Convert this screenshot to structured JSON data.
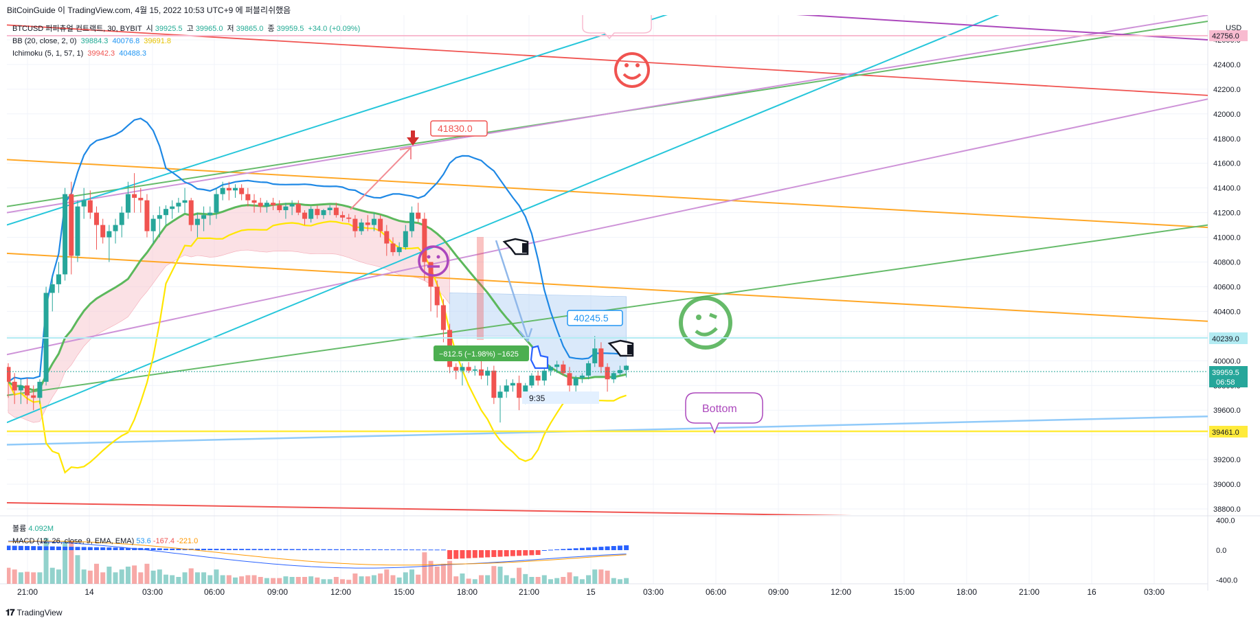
{
  "header": {
    "text": "BitCoinGuide 이 TradingView.com, 4월 15, 2022 10:53 UTC+9 에 퍼블리쉬했음"
  },
  "legend": {
    "symbol": "BTCUSD 퍼피츄얼 컨트랙트, 30, BYBIT",
    "open_label": "시",
    "open": "39925.5",
    "high_label": "고",
    "high": "39965.0",
    "low_label": "저",
    "low": "39865.0",
    "close_label": "종",
    "close": "39959.5",
    "change": "+34.0 (+0.09%)",
    "bb_label": "BB (20, close, 2, 0)",
    "bb_mid": "39884.3",
    "bb_upper": "40076.8",
    "bb_lower": "39691.8",
    "ichimoku_label": "Ichimoku (5, 1, 57, 1)",
    "ich_a": "39942.3",
    "ich_b": "40488.3"
  },
  "volume_legend": {
    "volume_label": "볼륨",
    "volume_value": "4.092M",
    "macd_label": "MACD (12, 26, close, 9, EMA, EMA)",
    "macd_hist": "53.6",
    "macd_line": "-167.4",
    "macd_signal": "-221.0"
  },
  "price_axis": {
    "currency": "USD",
    "ticks": [
      "42600.0",
      "42400.0",
      "42200.0",
      "42000.0",
      "41800.0",
      "41600.0",
      "41400.0",
      "41200.0",
      "41000.0",
      "40800.0",
      "40600.0",
      "40400.0",
      "40200.0",
      "40000.0",
      "39800.0",
      "39600.0",
      "39400.0",
      "39200.0",
      "39000.0",
      "38800.0"
    ],
    "tag_top": "42756.0",
    "tag_40239": "40239.0",
    "tag_current": "39959.5",
    "tag_countdown": "06:58",
    "tag_39461": "39461.0"
  },
  "macd_axis": {
    "ticks": [
      "400.0",
      "0.0",
      "-400.0"
    ]
  },
  "time_axis": {
    "ticks": [
      "21:00",
      "14",
      "03:00",
      "06:00",
      "09:00",
      "12:00",
      "15:00",
      "18:00",
      "21:00",
      "15",
      "03:00",
      "06:00",
      "09:00",
      "12:00",
      "15:00",
      "18:00",
      "21:00",
      "16",
      "03:00"
    ]
  },
  "annotations": {
    "target_price": "41830.0",
    "mid_price": "40245.5",
    "measure": "−812.5 (−1.98%) −1625",
    "duration": "9:35",
    "bottom": "Bottom"
  },
  "footer": {
    "brand": "TradingView"
  },
  "chart_data": {
    "type": "candlestick",
    "symbol": "BTCUSD",
    "interval": "30",
    "ylim": [
      38750,
      42800
    ],
    "macd_ylim": [
      -450,
      450
    ],
    "time_labels": [
      "21:00",
      "14",
      "03:00",
      "06:00",
      "09:00",
      "12:00",
      "15:00",
      "18:00",
      "21:00",
      "15",
      "03:00",
      "06:00",
      "09:00",
      "12:00",
      "15:00",
      "18:00",
      "21:00",
      "16",
      "03:00"
    ],
    "candles": [
      [
        39950,
        39980,
        39700,
        39830
      ],
      [
        39830,
        39900,
        39650,
        39760
      ],
      [
        39760,
        39850,
        39650,
        39800
      ],
      [
        39800,
        39860,
        39650,
        39720
      ],
      [
        39720,
        39800,
        39600,
        39700
      ],
      [
        39700,
        39850,
        39650,
        39830
      ],
      [
        39830,
        40600,
        39800,
        40550
      ],
      [
        40550,
        40680,
        40400,
        40620
      ],
      [
        40620,
        40800,
        40550,
        40700
      ],
      [
        40700,
        41400,
        40650,
        41350
      ],
      [
        41350,
        41450,
        40700,
        40850
      ],
      [
        40850,
        41300,
        40800,
        41250
      ],
      [
        41250,
        41400,
        41150,
        41300
      ],
      [
        41300,
        41380,
        41150,
        41200
      ],
      [
        41200,
        41250,
        40900,
        41100
      ],
      [
        41100,
        41150,
        40950,
        41000
      ],
      [
        41000,
        41100,
        40800,
        41050
      ],
      [
        41050,
        41150,
        40950,
        41100
      ],
      [
        41100,
        41250,
        41000,
        41200
      ],
      [
        41200,
        41450,
        41150,
        41350
      ],
      [
        41350,
        41520,
        41200,
        41320
      ],
      [
        41320,
        41400,
        41200,
        41300
      ],
      [
        41300,
        41350,
        41000,
        41050
      ],
      [
        41050,
        41180,
        40950,
        41150
      ],
      [
        41150,
        41250,
        41000,
        41180
      ],
      [
        41180,
        41260,
        41100,
        41230
      ],
      [
        41230,
        41300,
        41150,
        41250
      ],
      [
        41250,
        41320,
        41200,
        41280
      ],
      [
        41280,
        41400,
        41200,
        41300
      ],
      [
        41300,
        41320,
        41050,
        41100
      ],
      [
        41100,
        41200,
        41000,
        41150
      ],
      [
        41150,
        41250,
        41050,
        41180
      ],
      [
        41180,
        41250,
        41100,
        41200
      ],
      [
        41200,
        41400,
        41150,
        41350
      ],
      [
        41350,
        41450,
        41300,
        41400
      ],
      [
        41400,
        41450,
        41300,
        41380
      ],
      [
        41380,
        41430,
        41320,
        41400
      ],
      [
        41400,
        41430,
        41300,
        41350
      ],
      [
        41350,
        41400,
        41250,
        41300
      ],
      [
        41300,
        41350,
        41200,
        41280
      ],
      [
        41280,
        41320,
        41200,
        41250
      ],
      [
        41250,
        41300,
        41200,
        41280
      ],
      [
        41280,
        41320,
        41220,
        41260
      ],
      [
        41260,
        41300,
        41200,
        41220
      ],
      [
        41220,
        41280,
        41150,
        41250
      ],
      [
        41250,
        41300,
        41180,
        41270
      ],
      [
        41270,
        41300,
        41180,
        41200
      ],
      [
        41200,
        41220,
        41100,
        41150
      ],
      [
        41150,
        41250,
        41120,
        41230
      ],
      [
        41230,
        41260,
        41150,
        41180
      ],
      [
        41180,
        41230,
        41150,
        41220
      ],
      [
        41220,
        41260,
        41180,
        41240
      ],
      [
        41240,
        41280,
        41160,
        41180
      ],
      [
        41180,
        41210,
        41130,
        41160
      ],
      [
        41160,
        41190,
        41120,
        41150
      ],
      [
        41150,
        41180,
        41000,
        41050
      ],
      [
        41050,
        41150,
        41020,
        41120
      ],
      [
        41120,
        41180,
        41050,
        41100
      ],
      [
        41100,
        41200,
        41050,
        41150
      ],
      [
        41150,
        41180,
        41000,
        41050
      ],
      [
        41050,
        41100,
        40850,
        40950
      ],
      [
        40950,
        41000,
        40850,
        40880
      ],
      [
        40880,
        40960,
        40850,
        40920
      ],
      [
        40920,
        41100,
        40900,
        41050
      ],
      [
        41050,
        41250,
        41000,
        41200
      ],
      [
        41200,
        41280,
        41120,
        41150
      ],
      [
        41150,
        41200,
        40650,
        40800
      ],
      [
        40800,
        40800,
        40400,
        40600
      ],
      [
        40600,
        40650,
        40350,
        40450
      ],
      [
        40450,
        40500,
        40150,
        40250
      ],
      [
        40250,
        40300,
        39900,
        39950
      ],
      [
        39950,
        39980,
        39850,
        39920
      ],
      [
        39920,
        39980,
        39800,
        39950
      ],
      [
        39950,
        39990,
        39900,
        39920
      ],
      [
        39920,
        39960,
        39880,
        39930
      ],
      [
        39930,
        40000,
        39850,
        39880
      ],
      [
        39880,
        39950,
        39800,
        39920
      ],
      [
        39920,
        39960,
        39650,
        39700
      ],
      [
        39700,
        39800,
        39500,
        39750
      ],
      [
        39750,
        39850,
        39700,
        39800
      ],
      [
        39800,
        39850,
        39750,
        39820
      ],
      [
        39820,
        39880,
        39600,
        39700
      ],
      [
        39700,
        39820,
        39650,
        39800
      ],
      [
        39800,
        39900,
        39780,
        39880
      ],
      [
        39880,
        39920,
        39800,
        39840
      ],
      [
        39840,
        39950,
        39800,
        39920
      ],
      [
        39920,
        39960,
        39880,
        39950
      ],
      [
        39950,
        40000,
        39900,
        39970
      ],
      [
        39970,
        40000,
        39880,
        39900
      ],
      [
        39900,
        39950,
        39750,
        39800
      ],
      [
        39800,
        39880,
        39750,
        39860
      ],
      [
        39860,
        39900,
        39820,
        39880
      ],
      [
        39880,
        40000,
        39850,
        39980
      ],
      [
        39980,
        40200,
        39950,
        40100
      ],
      [
        40100,
        40150,
        39900,
        39950
      ],
      [
        39950,
        39980,
        39750,
        39850
      ],
      [
        39850,
        39920,
        39820,
        39900
      ],
      [
        39900,
        39960,
        39880,
        39925
      ],
      [
        39925,
        39965,
        39865,
        39960
      ]
    ],
    "bb": {
      "mid": "39884.3",
      "upper": "40076.8",
      "lower": "39691.8"
    },
    "horizontal_levels": [
      42756.0,
      40239.0,
      39461.0
    ],
    "volume_last": "4.092M",
    "macd": {
      "hist": 53.6,
      "macd": -167.4,
      "signal": -221.0
    }
  }
}
